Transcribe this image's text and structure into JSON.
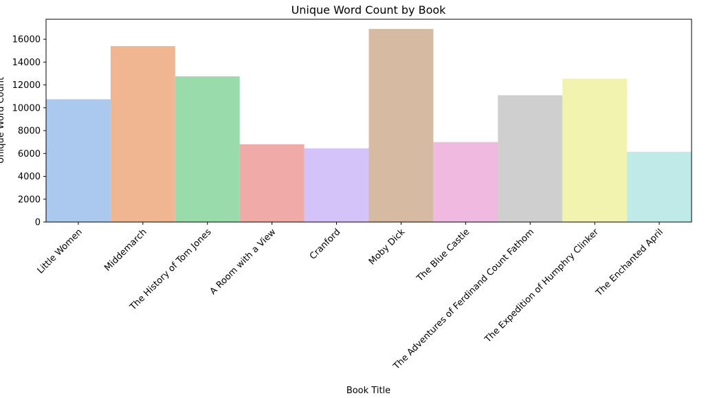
{
  "chart_data": {
    "type": "bar",
    "title": "Unique Word Count by Book",
    "xlabel": "Book Title",
    "ylabel": "Unique Word Count",
    "categories": [
      "Little Women",
      "Middemarch",
      "The History of Tom Jones",
      "A Room with a View",
      "Cranford",
      "Moby Dick",
      "The Blue Castle",
      "The Adventures of Ferdinand Count Fathom",
      "The Expedition of Humphry Clinker",
      "The Enchanted April"
    ],
    "values": [
      10750,
      15400,
      12750,
      6800,
      6450,
      16900,
      7000,
      11100,
      12550,
      6150
    ],
    "colors": [
      "#abc9ee",
      "#f0b692",
      "#99dbaa",
      "#f0aaa7",
      "#d3c3f8",
      "#d6bba2",
      "#f0b9e0",
      "#cfcfcf",
      "#f3f3b0",
      "#c0eae8"
    ],
    "yticks": [
      0,
      2000,
      4000,
      6000,
      8000,
      10000,
      12000,
      14000,
      16000
    ],
    "ylim": [
      0,
      17750
    ],
    "grid": false,
    "legend": "none"
  }
}
